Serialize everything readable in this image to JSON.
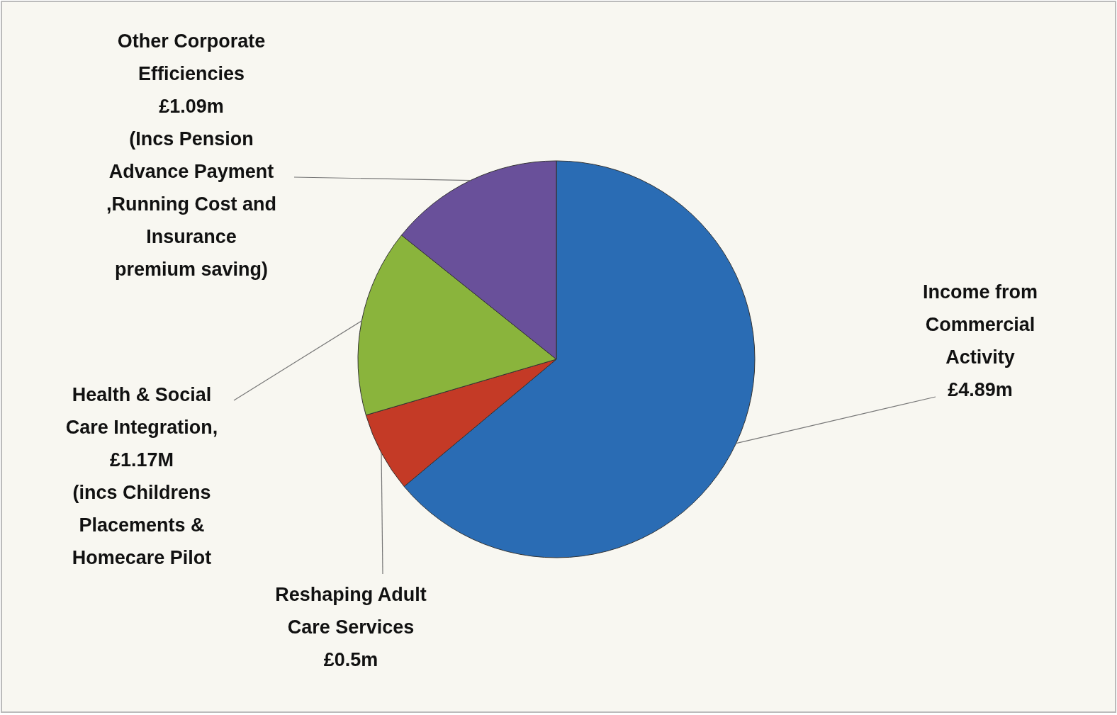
{
  "chart_data": {
    "type": "pie",
    "categories": [
      "Income from\nCommercial\nActivity\n£4.89m",
      "Reshaping Adult\nCare Services\n£0.5m",
      "Health & Social\nCare Integration,\n£1.17M\n(incs Childrens\nPlacements &\nHomecare Pilot",
      "Other Corporate\nEfficiencies\n£1.09m\n(Incs Pension\nAdvance Payment\n,Running Cost and\nInsurance\npremium saving)"
    ],
    "values": [
      4.89,
      0.5,
      1.17,
      1.09
    ],
    "colors": [
      "#2a6cb4",
      "#c43a26",
      "#8ab43c",
      "#69509a"
    ]
  }
}
